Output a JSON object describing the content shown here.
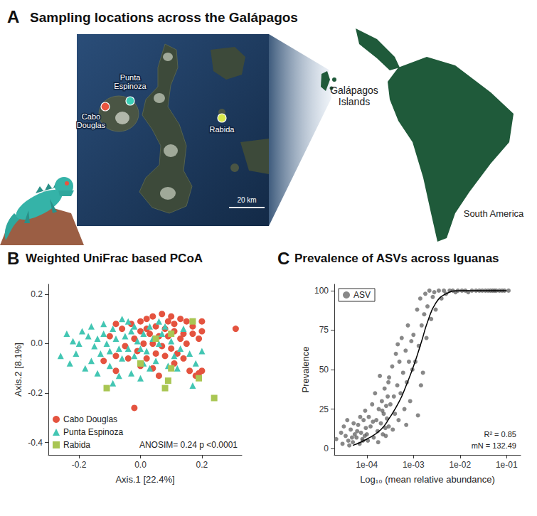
{
  "map": {
    "panel": "A",
    "title": "Sampling locations across the Galápagos",
    "sites": [
      {
        "name": "Cabo Douglas",
        "color": "#e8553f"
      },
      {
        "name": "Punta Espinoza",
        "color": "#3ccfb6"
      },
      {
        "name": "Rabida",
        "color": "#d8e84a"
      }
    ],
    "labels": {
      "region": "Galápagos Islands",
      "continent": "South America"
    },
    "scale_bar": "20 km"
  },
  "chart_data": [
    {
      "type": "scatter",
      "panel": "B",
      "title": "Weighted UniFrac based PCoA",
      "x_label": "Axis.1 [22.4%]",
      "y_label": "Axis.2 [8.1%]",
      "xlim": [
        -0.3,
        0.33
      ],
      "ylim": [
        -0.45,
        0.24
      ],
      "xticks": [
        -0.2,
        {
          "value": 0,
          "label": "0.0"
        },
        0.2
      ],
      "yticks": [
        -0.4,
        -0.2,
        {
          "value": 0,
          "label": "0.0"
        },
        0.2
      ],
      "grid": false,
      "legend": "lower left",
      "annotations": [
        "ANOSIM= 0.24 p <0.0001"
      ],
      "series": [
        {
          "name": "Cabo Douglas",
          "color": "#e4533f",
          "marker": "circle",
          "x": [
            0.31,
            0.2,
            0.2,
            0.15,
            0.13,
            0.1,
            0.07,
            0.04,
            0.02,
            0.0,
            -0.03,
            -0.08,
            0.05,
            0.08,
            0.11,
            0.14,
            0.17,
            0.19,
            0.13,
            0.09,
            0.06,
            0.03,
            0.0,
            -0.02,
            0.01,
            0.04,
            0.07,
            0.1,
            0.15,
            0.12,
            0.08,
            0.05,
            0.02,
            -0.01,
            -0.05,
            -0.08,
            -0.12,
            0.0,
            0.04,
            0.11,
            0.14,
            0.16,
            0.19,
            0.2,
            0.18,
            -0.02,
            -0.08,
            0.06,
            -0.06,
            0.02,
            0.17,
            0.11,
            -0.1,
            0.09,
            -0.04
          ],
          "values": [
            0.06,
            0.09,
            0.05,
            0.09,
            0.1,
            0.11,
            0.12,
            0.11,
            0.1,
            0.09,
            0.08,
            0.08,
            0.07,
            0.06,
            0.05,
            0.04,
            0.04,
            0.02,
            0.02,
            0.03,
            0.03,
            0.04,
            0.05,
            0.02,
            0.0,
            0.0,
            -0.01,
            -0.02,
            0.0,
            -0.04,
            -0.05,
            -0.04,
            -0.06,
            -0.03,
            -0.01,
            -0.05,
            -0.07,
            -0.09,
            -0.1,
            -0.08,
            -0.06,
            -0.11,
            -0.12,
            -0.11,
            -0.13,
            -0.26,
            -0.11,
            -0.13,
            0.06,
            0.06,
            0.07,
            0.08,
            0.03,
            0.09,
            -0.06
          ]
        },
        {
          "name": "Punta Espinoza",
          "color": "#43c6b3",
          "marker": "triangle",
          "x": [
            -0.24,
            -0.22,
            -0.2,
            -0.21,
            -0.19,
            -0.17,
            -0.16,
            -0.15,
            -0.14,
            -0.13,
            -0.12,
            -0.11,
            -0.1,
            -0.09,
            -0.08,
            -0.07,
            -0.06,
            -0.06,
            -0.05,
            -0.04,
            -0.03,
            -0.02,
            -0.01,
            0.0,
            0.01,
            0.02,
            0.03,
            0.04,
            0.05,
            0.06,
            0.07,
            0.08,
            0.09,
            0.1,
            0.11,
            0.12,
            0.14,
            0.16,
            0.18,
            0.17,
            0.2,
            -0.18,
            -0.14,
            -0.1,
            -0.07,
            -0.03,
            0.0,
            0.03,
            -0.26,
            -0.23,
            -0.09,
            0.06,
            -0.02,
            -0.12,
            0.01,
            -0.16,
            0.13,
            -0.04
          ],
          "values": [
            0.04,
            0.01,
            0.0,
            -0.04,
            0.05,
            0.03,
            0.07,
            -0.01,
            0.02,
            -0.04,
            0.04,
            0.0,
            -0.03,
            0.06,
            0.02,
            -0.02,
            0.1,
            -0.06,
            0.03,
            -0.02,
            0.05,
            -0.05,
            0.01,
            -0.02,
            0.04,
            -0.03,
            0.07,
            0.02,
            -0.07,
            0.0,
            0.04,
            0.07,
            -0.09,
            0.01,
            -0.05,
            -0.1,
            0.06,
            -0.04,
            -0.08,
            -0.17,
            -0.03,
            -0.1,
            -0.12,
            -0.09,
            -0.13,
            -0.12,
            -0.14,
            -0.1,
            -0.05,
            -0.08,
            -0.16,
            0.09,
            0.07,
            0.08,
            -0.08,
            -0.07,
            -0.02,
            0.09
          ]
        },
        {
          "name": "Rabida",
          "color": "#a9c653",
          "marker": "square",
          "x": [
            0.17,
            0.1,
            0.1,
            -0.11,
            0.0,
            0.09,
            0.08,
            0.19,
            0.24,
            0.05
          ],
          "values": [
            0.09,
            0.04,
            -0.1,
            -0.18,
            -0.08,
            -0.15,
            -0.18,
            -0.14,
            -0.22,
            0.02
          ]
        }
      ]
    },
    {
      "type": "scatter",
      "panel": "C",
      "title": "Prevalence of ASVs across Iguanas",
      "x_label": "Log₁₀ (mean relative abundance)",
      "y_label": "Prevalence",
      "log": "x",
      "xlim": [
        2e-05,
        0.2
      ],
      "ylim": [
        -4,
        104
      ],
      "xticks": [
        {
          "value": 0.0001,
          "label": "1e-04"
        },
        {
          "value": 0.001,
          "label": "1e-03"
        },
        {
          "value": 0.01,
          "label": "1e-02"
        },
        {
          "value": 0.1,
          "label": "1e-01"
        }
      ],
      "yticks": [
        0,
        25,
        50,
        75,
        100
      ],
      "grid": false,
      "legend": "upper left",
      "annotations": [
        "R² = 0.85",
        "mN = 132.49"
      ],
      "series": [
        {
          "name": "ASV",
          "type": "scatter",
          "color": "#555555",
          "marker": "circle",
          "x": [
            2.2e-05,
            3e-05,
            3.5e-05,
            4e-05,
            4.5e-05,
            5e-05,
            5.5e-05,
            6e-05,
            6.5e-05,
            7e-05,
            7.5e-05,
            8e-05,
            8.5e-05,
            9e-05,
            9.5e-05,
            2.8e-05,
            3.2e-05,
            4.2e-05,
            5.2e-05,
            6.2e-05,
            7.2e-05,
            8.2e-05,
            9.2e-05,
            4.8e-05,
            3.8e-05,
            0.0001,
            0.00011,
            0.00012,
            0.00013,
            0.00014,
            0.00015,
            0.00016,
            0.00017,
            0.00018,
            0.00019,
            0.0002,
            0.00021,
            0.00022,
            0.00023,
            0.00024,
            0.00025,
            0.00026,
            0.00027,
            0.00028,
            0.00029,
            0.000105,
            0.000135,
            0.000175,
            0.000215,
            0.000255,
            0.000295,
            0.0003,
            0.00032,
            0.00035,
            0.00038,
            0.0004,
            0.00042,
            0.00045,
            0.00048,
            0.0005,
            0.00053,
            0.00056,
            0.0006,
            0.00064,
            0.00068,
            0.00072,
            0.00076,
            0.0008,
            0.00085,
            0.0009,
            0.00095,
            0.00036,
            0.00046,
            0.0007,
            0.001,
            0.0011,
            0.0012,
            0.0013,
            0.0014,
            0.0015,
            0.0016,
            0.0017,
            0.0018,
            0.0019,
            0.002,
            0.0022,
            0.0024,
            0.0026,
            0.0028,
            0.003,
            0.00125,
            0.00145,
            0.0035,
            0.004,
            0.0045,
            0.005,
            0.006,
            0.007,
            0.008,
            0.009,
            0.011,
            0.013,
            0.015,
            0.018,
            0.022,
            0.026,
            0.03,
            0.035,
            0.04,
            0.045,
            0.05,
            0.055,
            0.06,
            0.07,
            0.08,
            0.09,
            0.11
          ],
          "values": [
            6,
            3,
            8,
            5,
            12,
            4,
            9,
            7,
            15,
            3,
            10,
            6,
            18,
            8,
            13,
            10,
            14,
            2,
            16,
            11,
            20,
            5,
            24,
            7,
            18,
            9,
            20,
            14,
            28,
            7,
            35,
            18,
            11,
            25,
            46,
            16,
            30,
            9,
            22,
            38,
            13,
            27,
            19,
            33,
            42,
            5,
            17,
            4,
            24,
            8,
            14,
            45,
            28,
            52,
            33,
            22,
            60,
            40,
            18,
            55,
            35,
            70,
            48,
            25,
            62,
            42,
            78,
            55,
            30,
            68,
            50,
            12,
            66,
            15,
            72,
            55,
            88,
            65,
            95,
            78,
            48,
            85,
            98,
            70,
            90,
            100,
            82,
            96,
            99,
            88,
            21,
            40,
            100,
            95,
            100,
            98,
            100,
            100,
            99,
            100,
            100,
            100,
            99,
            100,
            100,
            100,
            100,
            100,
            100,
            100,
            100,
            100,
            100,
            100,
            100,
            100,
            100
          ]
        },
        {
          "type": "line",
          "color": "#000000",
          "line_style": "solid",
          "x": [
            5e-05,
            0.0001,
            0.0002,
            0.0003,
            0.0005,
            0.0007,
            0.001,
            0.0015,
            0.002,
            0.003,
            0.005,
            0.01,
            0.1
          ],
          "values": [
            2,
            6,
            12,
            19,
            30,
            40,
            52,
            68,
            80,
            92,
            98,
            100,
            100
          ]
        }
      ]
    }
  ]
}
